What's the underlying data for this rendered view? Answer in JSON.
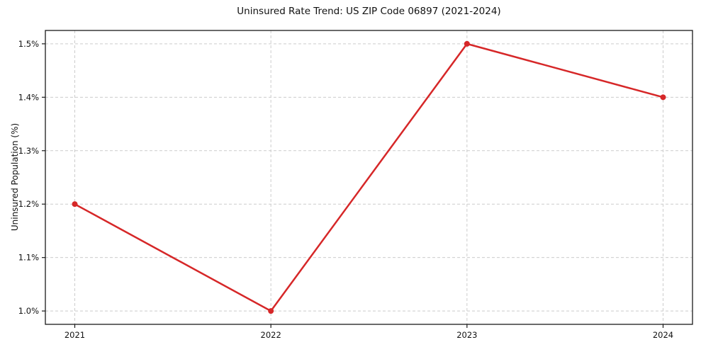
{
  "chart_data": {
    "type": "line",
    "title": "Uninsured Rate Trend: US ZIP Code 06897 (2021-2024)",
    "xlabel": "",
    "ylabel": "Uninsured Population (%)",
    "series": [
      {
        "name": "uninsured-rate",
        "x": [
          2021,
          2022,
          2023,
          2024
        ],
        "values": [
          1.2,
          1.0,
          1.5,
          1.4
        ]
      }
    ],
    "x_tick_values": [
      2021,
      2022,
      2023,
      2024
    ],
    "x_tick_labels": [
      "2021",
      "2022",
      "2023",
      "2024"
    ],
    "y_tick_values": [
      1.0,
      1.1,
      1.2,
      1.3,
      1.4,
      1.5
    ],
    "y_tick_labels": [
      "1.0%",
      "1.1%",
      "1.2%",
      "1.3%",
      "1.4%",
      "1.5%"
    ],
    "xlim": [
      2020.85,
      2024.15
    ],
    "ylim": [
      0.975,
      1.525
    ],
    "grid": true,
    "grid_style": "dashed",
    "legend_position": "none",
    "colors": {
      "line": "#d62728",
      "marker": "#d62728",
      "grid": "#cccccc",
      "spine": "#1a1a1a",
      "text": "#111111",
      "background": "#ffffff"
    }
  }
}
